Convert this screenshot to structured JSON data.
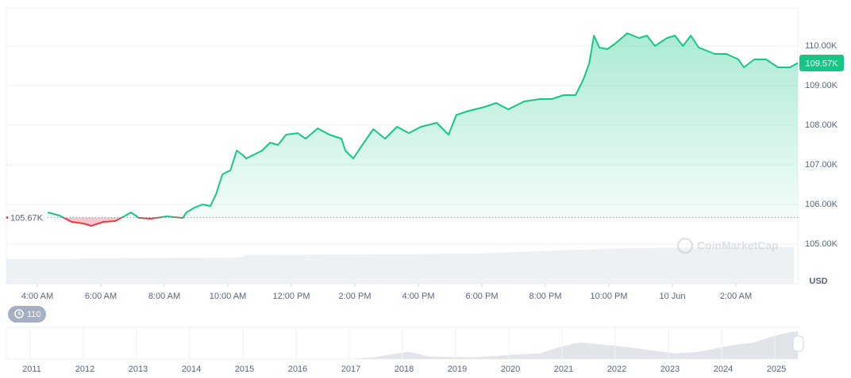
{
  "chart_data": {
    "type": "line",
    "x": [
      0.33,
      0.7,
      1.08,
      1.45,
      1.7,
      2.08,
      2.45,
      2.78,
      2.95,
      3.2,
      3.58,
      4.08,
      4.58,
      4.7,
      4.95,
      5.2,
      5.45,
      5.63,
      5.83,
      6.08,
      6.28,
      6.45,
      6.58,
      6.83,
      7.08,
      7.33,
      7.58,
      7.83,
      8.2,
      8.45,
      8.83,
      9.2,
      9.58,
      9.7,
      9.95,
      10.2,
      10.58,
      10.95,
      11.33,
      11.7,
      12.08,
      12.58,
      12.95,
      13.2,
      13.58,
      14.08,
      14.45,
      14.83,
      15.33,
      15.83,
      16.2,
      16.58,
      16.95,
      17.2,
      17.38,
      17.53,
      17.7,
      17.95,
      18.2,
      18.58,
      18.95,
      19.2,
      19.45,
      19.83,
      20.08,
      20.33,
      20.58,
      20.83,
      21.33,
      21.7,
      22.08,
      22.25,
      22.58,
      22.95,
      23.33,
      23.7,
      23.95
    ],
    "values": [
      105.8,
      105.72,
      105.56,
      105.52,
      105.46,
      105.56,
      105.58,
      105.72,
      105.8,
      105.66,
      105.64,
      105.7,
      105.66,
      105.8,
      105.92,
      106.0,
      105.96,
      106.26,
      106.76,
      106.86,
      107.36,
      107.26,
      107.16,
      107.26,
      107.36,
      107.56,
      107.5,
      107.76,
      107.8,
      107.66,
      107.92,
      107.76,
      107.66,
      107.36,
      107.16,
      107.46,
      107.9,
      107.66,
      107.96,
      107.8,
      107.96,
      108.06,
      107.76,
      108.26,
      108.36,
      108.46,
      108.56,
      108.4,
      108.6,
      108.66,
      108.66,
      108.76,
      108.76,
      109.16,
      109.56,
      110.26,
      109.96,
      109.92,
      110.06,
      110.32,
      110.2,
      110.26,
      110.0,
      110.2,
      110.26,
      110.0,
      110.26,
      109.96,
      109.8,
      109.8,
      109.66,
      109.46,
      109.66,
      109.66,
      109.46,
      109.46,
      109.57
    ],
    "color_up": "#16c784",
    "color_down": "#ea3943",
    "baseline": {
      "value": 105.67,
      "label": "105.67K"
    },
    "last": {
      "value": 109.57,
      "label": "109.57K"
    },
    "xlim": [
      -0.975,
      23.95
    ],
    "xticks": [
      {
        "value": 0,
        "label": "4:00 AM"
      },
      {
        "value": 2,
        "label": "6:00 AM"
      },
      {
        "value": 4,
        "label": "8:00 AM"
      },
      {
        "value": 6,
        "label": "10:00 AM"
      },
      {
        "value": 8,
        "label": "12:00 PM"
      },
      {
        "value": 10,
        "label": "2:00 PM"
      },
      {
        "value": 12,
        "label": "4:00 PM"
      },
      {
        "value": 14,
        "label": "6:00 PM"
      },
      {
        "value": 16,
        "label": "8:00 PM"
      },
      {
        "value": 18,
        "label": "10:00 PM"
      },
      {
        "value": 20,
        "label": "10 Jun"
      },
      {
        "value": 22,
        "label": "2:00 AM"
      }
    ],
    "ylim": [
      104,
      110.96
    ],
    "yticks": [
      {
        "value": 105,
        "label": "105.00K"
      },
      {
        "value": 106,
        "label": "106.00K"
      },
      {
        "value": 107,
        "label": "107.00K"
      },
      {
        "value": 108,
        "label": "108.00K"
      },
      {
        "value": 109,
        "label": "109.00K"
      },
      {
        "value": 110,
        "label": "110.00K"
      }
    ],
    "y_axis_label": "USD",
    "grid": true
  },
  "watermark": "CoinMarketCap",
  "badge": "110",
  "navigator": {
    "years": [
      "2011",
      "2012",
      "2013",
      "2014",
      "2015",
      "2016",
      "2017",
      "2018",
      "2019",
      "2020",
      "2021",
      "2022",
      "2023",
      "2024",
      "2025"
    ]
  }
}
